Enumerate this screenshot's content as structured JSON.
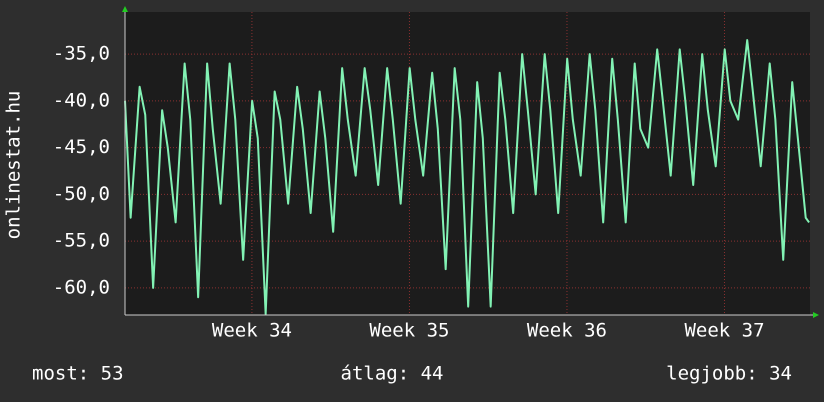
{
  "chart_data": {
    "type": "line",
    "ylabel": "onlinestat.hu",
    "annotations": [
      "most: 53",
      "átlag: 44",
      "legjobb: 34"
    ],
    "color": "#82f2b4",
    "grid": true,
    "xlim": [
      0,
      30.44
    ],
    "xticks": [
      {
        "value": 5.64,
        "label": "Week 34"
      },
      {
        "value": 12.64,
        "label": "Week 35"
      },
      {
        "value": 19.64,
        "label": "Week 36"
      },
      {
        "value": 26.64,
        "label": "Week 37"
      }
    ],
    "ylim": [
      -62.9,
      -30.5
    ],
    "yticks": [
      {
        "value": -60,
        "label": "-60,0"
      },
      {
        "value": -55,
        "label": "-55,0"
      },
      {
        "value": -50,
        "label": "-50,0"
      },
      {
        "value": -45,
        "label": "-45,0"
      },
      {
        "value": -40,
        "label": "-40,0"
      },
      {
        "value": -35,
        "label": "-35,0"
      }
    ],
    "x": [
      0,
      0.25,
      0.65,
      0.9,
      1.25,
      1.65,
      1.9,
      2.25,
      2.65,
      2.9,
      3.25,
      3.65,
      3.9,
      4.25,
      4.65,
      4.9,
      5.25,
      5.65,
      5.9,
      6.25,
      6.65,
      6.9,
      7.25,
      7.65,
      7.9,
      8.25,
      8.65,
      8.9,
      9.25,
      9.65,
      9.9,
      10.25,
      10.65,
      10.9,
      11.25,
      11.65,
      11.9,
      12.25,
      12.65,
      12.9,
      13.25,
      13.65,
      13.9,
      14.25,
      14.65,
      14.9,
      15.25,
      15.65,
      15.9,
      16.25,
      16.65,
      16.9,
      17.25,
      17.65,
      17.9,
      18.25,
      18.65,
      18.9,
      19.25,
      19.65,
      19.9,
      20.25,
      20.65,
      20.9,
      21.25,
      21.65,
      21.9,
      22.25,
      22.65,
      22.9,
      23.25,
      23.65,
      23.9,
      24.25,
      24.65,
      24.9,
      25.25,
      25.65,
      25.9,
      26.25,
      26.65,
      26.9,
      27.25,
      27.65,
      27.9,
      28.25,
      28.65,
      28.9,
      29.25,
      29.65,
      29.9,
      30.25,
      30.4
    ],
    "values": [
      -40,
      -52.5,
      -38.5,
      -41.5,
      -60,
      -41,
      -45,
      -53,
      -36,
      -42,
      -61,
      -36,
      -43,
      -51,
      -36,
      -42,
      -57,
      -40,
      -44,
      -62.8,
      -39,
      -42,
      -51,
      -38.5,
      -43,
      -52,
      -39,
      -44,
      -54,
      -36.5,
      -42,
      -48,
      -36.5,
      -41,
      -49,
      -36.5,
      -42,
      -51,
      -36.5,
      -42,
      -48,
      -37,
      -43,
      -58,
      -36.5,
      -42,
      -62,
      -38,
      -44,
      -62,
      -37,
      -42,
      -52,
      -35,
      -41,
      -50,
      -35,
      -41,
      -52,
      -35.5,
      -42,
      -48,
      -35,
      -41,
      -53,
      -35.5,
      -42,
      -53,
      -36,
      -43,
      -45,
      -34.5,
      -40,
      -48,
      -34.5,
      -40,
      -49,
      -35,
      -41,
      -47,
      -34.5,
      -40,
      -42,
      -33.5,
      -39,
      -47,
      -36,
      -42,
      -57,
      -38,
      -44,
      -52.5,
      -53
    ]
  }
}
